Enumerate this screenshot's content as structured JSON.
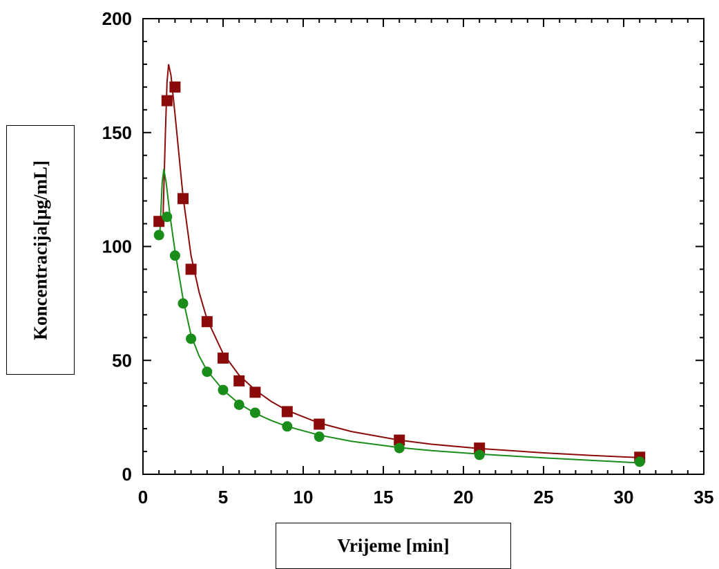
{
  "chart_data": {
    "type": "scatter",
    "title": "",
    "xlabel": "Vrijeme [min]",
    "ylabel": "Koncentracija[µg/mL]",
    "xlim": [
      0,
      35
    ],
    "ylim": [
      0,
      200
    ],
    "xticks": [
      0,
      5,
      10,
      15,
      20,
      25,
      30,
      35
    ],
    "yticks": [
      0,
      50,
      100,
      150,
      200
    ],
    "grid": false,
    "series": [
      {
        "marker": "square",
        "color": "#8b0a0a",
        "points": [
          [
            1,
            111
          ],
          [
            1.5,
            164
          ],
          [
            2,
            170
          ],
          [
            2.5,
            121
          ],
          [
            3,
            90
          ],
          [
            4,
            67
          ],
          [
            5,
            51
          ],
          [
            6,
            41
          ],
          [
            7,
            36
          ],
          [
            9,
            27.5
          ],
          [
            11,
            22
          ],
          [
            16,
            15
          ],
          [
            21,
            11.5
          ],
          [
            31,
            7.5
          ]
        ],
        "fit_curve": [
          [
            1.25,
            112
          ],
          [
            1.4,
            150
          ],
          [
            1.5,
            172
          ],
          [
            1.6,
            180
          ],
          [
            1.75,
            175
          ],
          [
            2,
            158
          ],
          [
            2.5,
            122
          ],
          [
            3,
            96
          ],
          [
            3.5,
            80
          ],
          [
            4,
            68
          ],
          [
            5,
            53
          ],
          [
            6,
            43.5
          ],
          [
            7,
            37
          ],
          [
            8,
            32
          ],
          [
            9,
            28
          ],
          [
            11,
            22.5
          ],
          [
            13,
            18.8
          ],
          [
            16,
            15
          ],
          [
            18,
            13.2
          ],
          [
            21,
            11.3
          ],
          [
            25,
            9.4
          ],
          [
            28,
            8.3
          ],
          [
            31,
            7.3
          ]
        ]
      },
      {
        "marker": "circle",
        "color": "#1a8c1a",
        "points": [
          [
            1,
            105
          ],
          [
            1.5,
            113
          ],
          [
            2,
            96
          ],
          [
            2.5,
            75
          ],
          [
            3,
            59.5
          ],
          [
            4,
            45
          ],
          [
            5,
            37
          ],
          [
            6,
            30.5
          ],
          [
            7,
            27
          ],
          [
            9,
            21
          ],
          [
            11,
            16.5
          ],
          [
            16,
            11.5
          ],
          [
            21,
            8.5
          ],
          [
            31,
            5.5
          ]
        ],
        "fit_curve": [
          [
            1.05,
            105
          ],
          [
            1.2,
            128
          ],
          [
            1.3,
            134
          ],
          [
            1.45,
            128
          ],
          [
            1.7,
            113
          ],
          [
            2,
            98
          ],
          [
            2.5,
            77
          ],
          [
            3,
            61
          ],
          [
            3.5,
            52
          ],
          [
            4,
            45.5
          ],
          [
            5,
            37
          ],
          [
            6,
            31
          ],
          [
            7,
            26.8
          ],
          [
            8,
            23.6
          ],
          [
            9,
            21
          ],
          [
            11,
            17.2
          ],
          [
            13,
            14.5
          ],
          [
            16,
            11.7
          ],
          [
            18,
            10.4
          ],
          [
            21,
            8.9
          ],
          [
            25,
            7.2
          ],
          [
            28,
            6.1
          ],
          [
            31,
            5.0
          ]
        ]
      }
    ]
  }
}
